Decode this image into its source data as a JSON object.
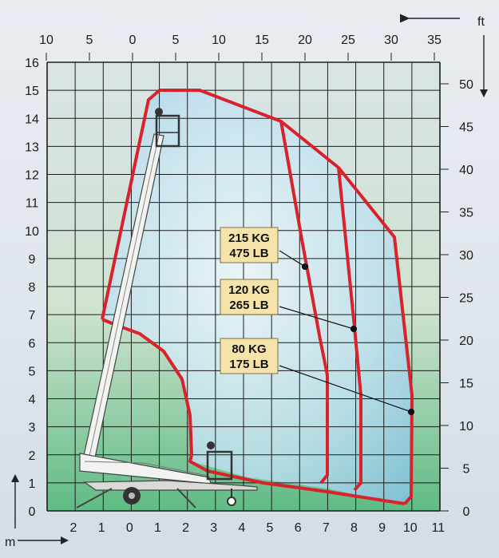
{
  "units": {
    "feet": "ft",
    "meters": "m"
  },
  "axes": {
    "top_ft": [
      "10",
      "5",
      "0",
      "5",
      "10",
      "15",
      "20",
      "25",
      "30",
      "35"
    ],
    "left_m": [
      "16",
      "15",
      "14",
      "13",
      "12",
      "11",
      "10",
      "9",
      "8",
      "7",
      "6",
      "5",
      "4",
      "3",
      "2",
      "1",
      "0"
    ],
    "right_ft": [
      "50",
      "45",
      "40",
      "35",
      "30",
      "25",
      "20",
      "15",
      "10",
      "5",
      "0"
    ],
    "bottom_m": [
      "2",
      "1",
      "0",
      "1",
      "2",
      "3",
      "4",
      "5",
      "6",
      "7",
      "8",
      "9",
      "10",
      "11"
    ]
  },
  "capacities": [
    {
      "kg": "215 KG",
      "lb": "475 LB"
    },
    {
      "kg": "120 KG",
      "lb": "265 LB"
    },
    {
      "kg": "80 KG",
      "lb": "175 LB"
    }
  ],
  "colors": {
    "envelope": "#d8222c",
    "grid": "#1b1b1b",
    "zone_fill": "#bfe0ef",
    "capacity_box": "#f6e3a9"
  }
}
